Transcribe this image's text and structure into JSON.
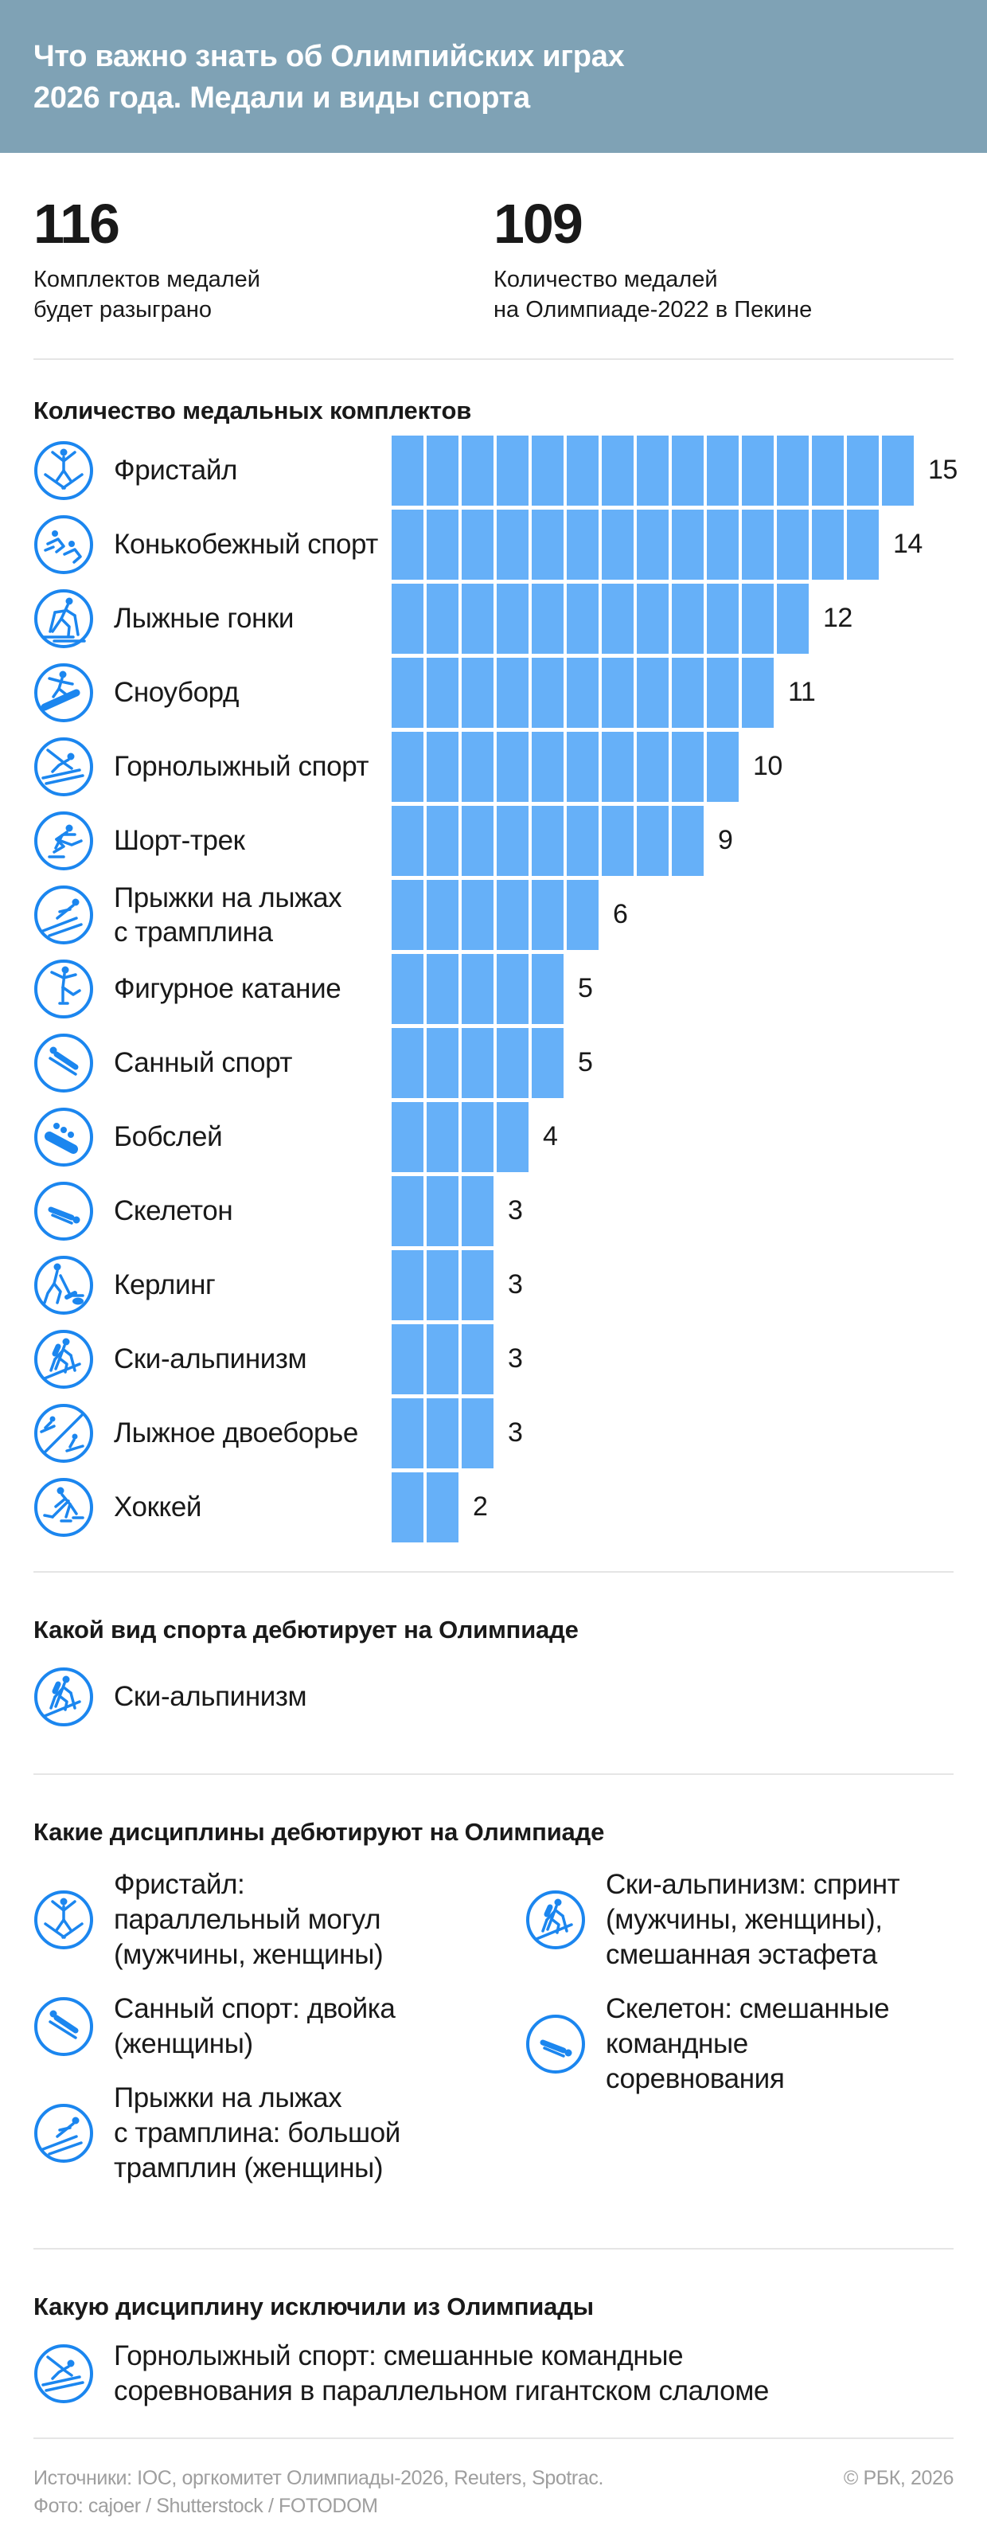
{
  "banner": {
    "title": "Что важно знать об Олимпийских играх\n2026 года. Медали и виды спорта",
    "bg_color": "#7fa2b5"
  },
  "stats": [
    {
      "value": "116",
      "caption": "Комплектов медалей\nбудет разыграно"
    },
    {
      "value": "109",
      "caption": "Количество медалей\nна Олимпиаде-2022 в Пекине"
    }
  ],
  "chart": {
    "title": "Количество медальных комплектов",
    "bar_color": "#66b0f8",
    "icon_color": "#1b86ef",
    "rows": [
      {
        "icon": "freestyle",
        "label": "Фристайл",
        "value": 15
      },
      {
        "icon": "speed-skating",
        "label": "Конькобежный спорт",
        "value": 14
      },
      {
        "icon": "cross-country-skiing",
        "label": "Лыжные гонки",
        "value": 12
      },
      {
        "icon": "snowboard",
        "label": "Сноуборд",
        "value": 11
      },
      {
        "icon": "alpine-skiing",
        "label": "Горнолыжный спорт",
        "value": 10
      },
      {
        "icon": "short-track",
        "label": "Шорт-трек",
        "value": 9
      },
      {
        "icon": "ski-jumping",
        "label": "Прыжки на лыжах\nс трамплина",
        "value": 6
      },
      {
        "icon": "figure-skating",
        "label": "Фигурное катание",
        "value": 5
      },
      {
        "icon": "luge",
        "label": "Санный спорт",
        "value": 5
      },
      {
        "icon": "bobsleigh",
        "label": "Бобслей",
        "value": 4
      },
      {
        "icon": "skeleton",
        "label": "Скелетон",
        "value": 3
      },
      {
        "icon": "curling",
        "label": "Керлинг",
        "value": 3
      },
      {
        "icon": "ski-mountaineering",
        "label": "Ски-альпинизм",
        "value": 3
      },
      {
        "icon": "nordic-combined",
        "label": "Лыжное двоеборье",
        "value": 3
      },
      {
        "icon": "hockey",
        "label": "Хоккей",
        "value": 2
      }
    ]
  },
  "chart_data": {
    "type": "bar",
    "orientation": "horizontal",
    "title": "Количество медальных комплектов",
    "categories": [
      "Фристайл",
      "Конькобежный спорт",
      "Лыжные гонки",
      "Сноуборд",
      "Горнолыжный спорт",
      "Шорт-трек",
      "Прыжки на лыжах с трамплина",
      "Фигурное катание",
      "Санный спорт",
      "Бобслей",
      "Скелетон",
      "Керлинг",
      "Ски-альпинизм",
      "Лыжное двоеборье",
      "Хоккей"
    ],
    "values": [
      15,
      14,
      12,
      11,
      10,
      9,
      6,
      5,
      5,
      4,
      3,
      3,
      3,
      3,
      2
    ],
    "xlim": [
      0,
      15
    ],
    "value_labels_shown": true,
    "style": "segmented-unit-blocks",
    "legend": "none"
  },
  "debut_sport": {
    "title": "Какой вид спорта дебютирует на Олимпиаде",
    "items": [
      {
        "icon": "ski-mountaineering",
        "label": "Ски-альпинизм"
      }
    ]
  },
  "debut_disciplines": {
    "title": "Какие дисциплины дебютируют на Олимпиаде",
    "left": [
      {
        "icon": "freestyle",
        "label": "Фристайл:\nпараллельный могул\n(мужчины, женщины)"
      },
      {
        "icon": "luge",
        "label": "Санный спорт: двойка\n(женщины)"
      },
      {
        "icon": "ski-jumping",
        "label": "Прыжки на лыжах\nс трамплина: большой\nтрамплин (женщины)"
      }
    ],
    "right": [
      {
        "icon": "ski-mountaineering",
        "label": "Ски-альпинизм: спринт\n(мужчины, женщины),\nсмешанная эстафета"
      },
      {
        "icon": "skeleton",
        "label": "Скелетон: смешанные\nкомандные\nсоревнования"
      }
    ]
  },
  "excluded": {
    "title": "Какую дисциплину исключили из Олимпиады",
    "items": [
      {
        "icon": "alpine-skiing",
        "label": "Горнолыжный спорт: смешанные командные\nсоревнования в параллельном гигантском слаломе"
      }
    ]
  },
  "footer": {
    "sources": "Источники: IOC, оргкомитет Олимпиады-2026, Reuters, Spotrac.",
    "photo": "Фото: cajoer / Shutterstock / FOTODOM",
    "copyright": "© РБК, 2026"
  }
}
